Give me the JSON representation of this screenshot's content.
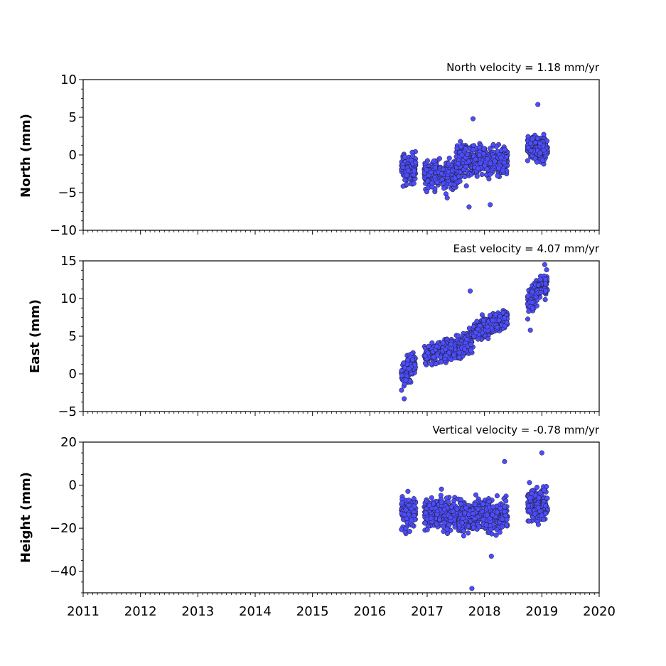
{
  "chart_data": [
    {
      "type": "scatter",
      "title": "North velocity = 1.18 mm/yr",
      "ylabel": "North (mm)",
      "xlim": [
        2011,
        2020
      ],
      "ylim": [
        -10,
        10
      ],
      "yticks": [
        -10,
        -5,
        0,
        5,
        10
      ],
      "ytick_labels": [
        "−10",
        "−5",
        "0",
        "5",
        "10"
      ],
      "marker_color": "#4d4dff",
      "clusters": [
        {
          "x_range": [
            2016.55,
            2016.8
          ],
          "y_mean": -1.8,
          "y_spread": 1.4
        },
        {
          "x_range": [
            2016.95,
            2017.55
          ],
          "y_mean": -2.5,
          "y_spread": 1.3
        },
        {
          "x_range": [
            2017.5,
            2017.8
          ],
          "y_mean": -0.5,
          "y_spread": 1.6
        },
        {
          "x_range": [
            2017.8,
            2018.4
          ],
          "y_mean": -0.8,
          "y_spread": 1.3
        },
        {
          "x_range": [
            2018.75,
            2019.1
          ],
          "y_mean": 1.0,
          "y_spread": 1.2
        }
      ],
      "outliers": [
        {
          "x": 2018.93,
          "y": 6.7
        },
        {
          "x": 2017.8,
          "y": 4.8
        },
        {
          "x": 2017.73,
          "y": -6.9
        },
        {
          "x": 2018.1,
          "y": -6.6
        },
        {
          "x": 2017.35,
          "y": -5.7
        }
      ]
    },
    {
      "type": "scatter",
      "title": "East velocity = 4.07 mm/yr",
      "ylabel": "East (mm)",
      "xlim": [
        2011,
        2020
      ],
      "ylim": [
        -5,
        15
      ],
      "yticks": [
        -5,
        0,
        5,
        10,
        15
      ],
      "ytick_labels": [
        "−5",
        "0",
        "5",
        "10",
        "15"
      ],
      "marker_color": "#4d4dff",
      "clusters": [
        {
          "x_range": [
            2016.55,
            2016.8
          ],
          "y_start": 0.0,
          "y_end": 1.5,
          "y_spread": 1.2
        },
        {
          "x_range": [
            2016.95,
            2017.55
          ],
          "y_start": 2.5,
          "y_end": 3.5,
          "y_spread": 0.9
        },
        {
          "x_range": [
            2017.55,
            2017.8
          ],
          "y_start": 3.5,
          "y_end": 4.5,
          "y_spread": 1.0
        },
        {
          "x_range": [
            2017.8,
            2018.4
          ],
          "y_start": 5.5,
          "y_end": 7.5,
          "y_spread": 0.9
        },
        {
          "x_range": [
            2018.75,
            2019.1
          ],
          "y_start": 9.5,
          "y_end": 12.5,
          "y_spread": 1.1
        }
      ],
      "outliers": [
        {
          "x": 2016.6,
          "y": -3.3
        },
        {
          "x": 2018.8,
          "y": 5.8
        },
        {
          "x": 2017.75,
          "y": 11.0
        },
        {
          "x": 2019.05,
          "y": 14.5
        }
      ]
    },
    {
      "type": "scatter",
      "title": "Vertical velocity = -0.78 mm/yr",
      "ylabel": "Height (mm)",
      "xlim": [
        2011,
        2020
      ],
      "ylim": [
        -50,
        20
      ],
      "yticks": [
        -40,
        -20,
        0,
        20
      ],
      "ytick_labels": [
        "−40",
        "−20",
        "0",
        "20"
      ],
      "marker_color": "#4d4dff",
      "clusters": [
        {
          "x_range": [
            2016.55,
            2016.8
          ],
          "y_mean": -13,
          "y_spread": 5
        },
        {
          "x_range": [
            2016.95,
            2017.55
          ],
          "y_mean": -13,
          "y_spread": 5
        },
        {
          "x_range": [
            2017.55,
            2017.8
          ],
          "y_mean": -14,
          "y_spread": 5
        },
        {
          "x_range": [
            2017.8,
            2018.4
          ],
          "y_mean": -14,
          "y_spread": 5
        },
        {
          "x_range": [
            2018.75,
            2019.1
          ],
          "y_mean": -9,
          "y_spread": 5
        }
      ],
      "outliers": [
        {
          "x": 2017.78,
          "y": -48
        },
        {
          "x": 2019.0,
          "y": 15
        },
        {
          "x": 2018.35,
          "y": 11
        },
        {
          "x": 2018.12,
          "y": -33
        }
      ]
    }
  ],
  "x_axis": {
    "ticks": [
      2011,
      2012,
      2013,
      2014,
      2015,
      2016,
      2017,
      2018,
      2019,
      2020
    ],
    "tick_labels": [
      "2011",
      "2012",
      "2013",
      "2014",
      "2015",
      "2016",
      "2017",
      "2018",
      "2019",
      "2020"
    ]
  }
}
